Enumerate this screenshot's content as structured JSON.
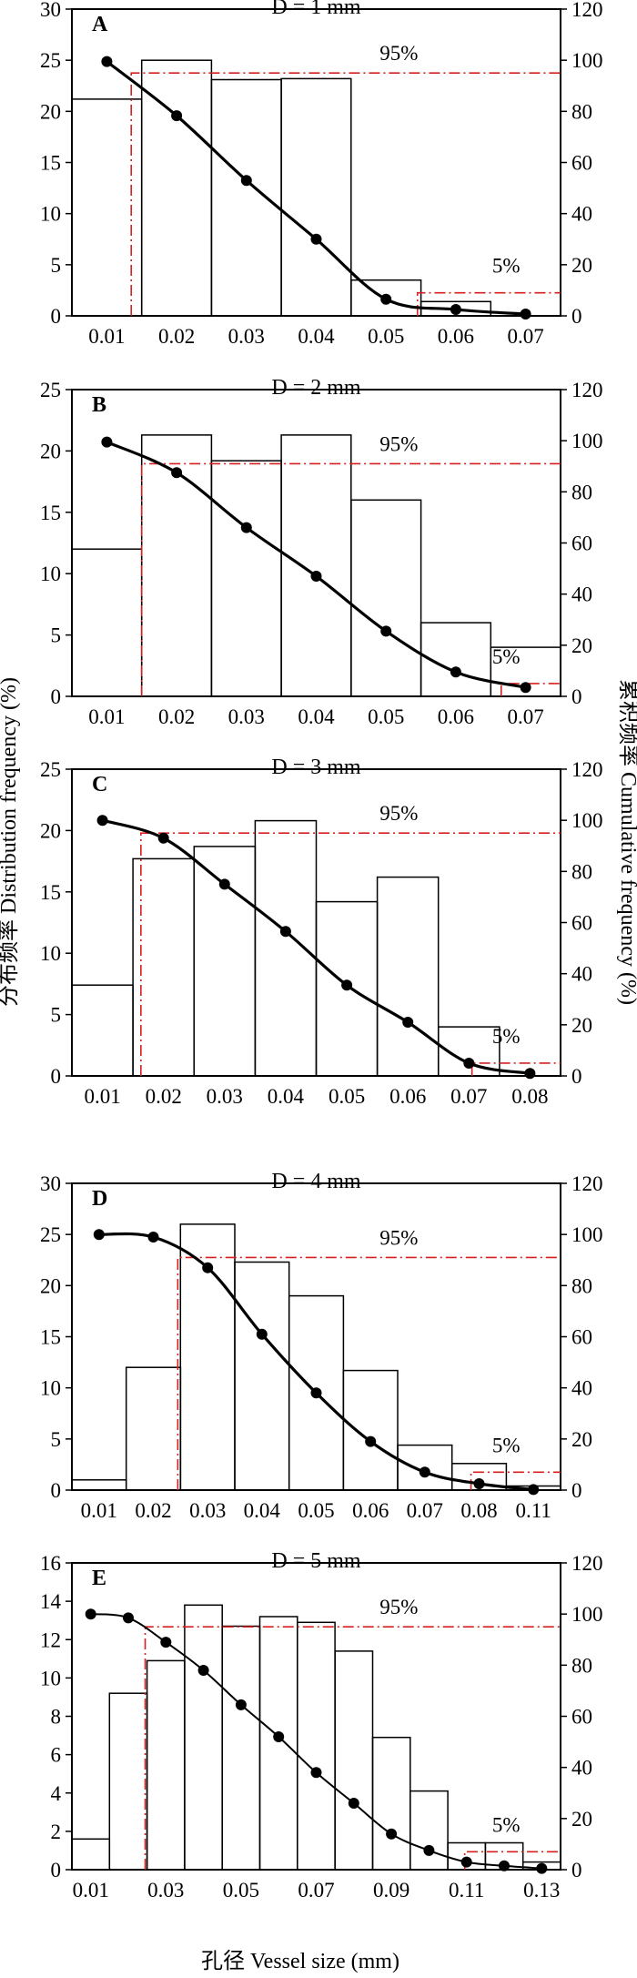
{
  "axes": {
    "left_label": "分布频率 Distribution frequency (%)",
    "right_label": "累积频率 Cumulative frequency (%)",
    "x_label": "孔径 Vessel size (mm)"
  },
  "colors": {
    "bars": "#000000",
    "curve": "#000000",
    "guide": "#d62020"
  },
  "chart_data": [
    {
      "type": "bar",
      "panel": "A",
      "title": "D = 1 mm",
      "categories": [
        "0.01",
        "0.02",
        "0.03",
        "0.04",
        "0.05",
        "0.06",
        "0.07"
      ],
      "series": [
        {
          "name": "",
          "axis": "left",
          "type": "bar",
          "values": [
            21.2,
            25.0,
            23.1,
            23.2,
            3.5,
            1.4,
            0
          ]
        },
        {
          "name": "",
          "axis": "right",
          "type": "line",
          "values": [
            99.5,
            78.3,
            53.0,
            30.0,
            6.5,
            2.5,
            0.7
          ]
        }
      ],
      "ylim_left": [
        0,
        30
      ],
      "yticks_left": [
        0,
        5,
        10,
        15,
        20,
        25,
        30
      ],
      "ylim_right": [
        0,
        120
      ],
      "yticks_right": [
        0,
        20,
        40,
        60,
        80,
        100,
        120
      ],
      "guides": {
        "p95_value": 95,
        "p95_label": "95%",
        "p95_x": 0.0135,
        "p5_value": 9,
        "p5_label": "5%",
        "p5_x": 0.0545
      }
    },
    {
      "type": "bar",
      "panel": "B",
      "title": "D = 2 mm",
      "categories": [
        "0.01",
        "0.02",
        "0.03",
        "0.04",
        "0.05",
        "0.06",
        "0.07"
      ],
      "series": [
        {
          "name": "",
          "axis": "left",
          "type": "bar",
          "values": [
            12.0,
            21.3,
            19.2,
            21.3,
            16.0,
            6.0,
            4.0
          ]
        },
        {
          "name": "",
          "axis": "right",
          "type": "line",
          "values": [
            99.5,
            87.5,
            66.0,
            47.0,
            25.5,
            9.5,
            3.5
          ]
        }
      ],
      "ylim_left": [
        0,
        25
      ],
      "yticks_left": [
        0,
        5,
        10,
        15,
        20,
        25
      ],
      "ylim_right": [
        0,
        120
      ],
      "yticks_right": [
        0,
        20,
        40,
        60,
        80,
        100,
        120
      ],
      "guides": {
        "p95_value": 91,
        "p95_label": "95%",
        "p95_x": 0.015,
        "p5_value": 5,
        "p5_label": "5%",
        "p5_x": 0.0665
      }
    },
    {
      "type": "bar",
      "panel": "C",
      "title": "D = 3 mm",
      "categories": [
        "0.01",
        "0.02",
        "0.03",
        "0.04",
        "0.05",
        "0.06",
        "0.07",
        "0.08"
      ],
      "series": [
        {
          "name": "",
          "axis": "left",
          "type": "bar",
          "values": [
            7.4,
            17.7,
            18.7,
            20.8,
            14.2,
            16.2,
            4.0,
            0
          ]
        },
        {
          "name": "",
          "axis": "right",
          "type": "line",
          "values": [
            100.0,
            93.0,
            75.0,
            56.5,
            35.5,
            21.0,
            5.0,
            1.0
          ]
        }
      ],
      "ylim_left": [
        0,
        25
      ],
      "yticks_left": [
        0,
        5,
        10,
        15,
        20,
        25
      ],
      "ylim_right": [
        0,
        120
      ],
      "yticks_right": [
        0,
        20,
        40,
        60,
        80,
        100,
        120
      ],
      "guides": {
        "p95_value": 95,
        "p95_label": "95%",
        "p95_x": 0.0163,
        "p5_value": 5,
        "p5_label": "5%",
        "p5_x": 0.0705
      }
    },
    {
      "type": "bar",
      "panel": "D",
      "title": "D = 4 mm",
      "categories": [
        "0.01",
        "0.02",
        "0.03",
        "0.04",
        "0.05",
        "0.06",
        "0.07",
        "0.08",
        "0.11"
      ],
      "series": [
        {
          "name": "",
          "axis": "left",
          "type": "bar",
          "values": [
            1.0,
            12.0,
            26.0,
            22.3,
            19.0,
            11.7,
            4.4,
            2.6,
            0.4
          ]
        },
        {
          "name": "",
          "axis": "right",
          "type": "line",
          "values": [
            100.0,
            99.0,
            87.0,
            61.0,
            38.0,
            19.0,
            7.0,
            2.5,
            0.2
          ]
        }
      ],
      "ylim_left": [
        0,
        30
      ],
      "yticks_left": [
        0,
        5,
        10,
        15,
        20,
        25,
        30
      ],
      "ylim_right": [
        0,
        120
      ],
      "yticks_right": [
        0,
        20,
        40,
        60,
        80,
        100,
        120
      ],
      "guides": {
        "p95_value": 91,
        "p95_label": "95%",
        "p95_x": 0.0245,
        "p5_value": 7,
        "p5_label": "5%",
        "p5_x": 0.0785
      }
    },
    {
      "type": "bar",
      "panel": "E",
      "title": "D = 5 mm",
      "categories": [
        "0.01",
        "0.02",
        "0.03",
        "0.04",
        "0.05",
        "0.06",
        "0.07",
        "0.08",
        "0.09",
        "0.10",
        "0.11",
        "0.12",
        "0.13"
      ],
      "xticks_shown": [
        "0.01",
        "0.03",
        "0.05",
        "0.07",
        "0.09",
        "0.11",
        "0.13"
      ],
      "series": [
        {
          "name": "",
          "axis": "left",
          "type": "bar",
          "values": [
            1.6,
            9.2,
            10.9,
            13.8,
            12.7,
            13.2,
            12.9,
            11.4,
            6.9,
            4.1,
            1.4,
            1.4,
            0.4
          ]
        },
        {
          "name": "",
          "axis": "right",
          "type": "line",
          "values": [
            100.0,
            98.5,
            89.0,
            78.0,
            64.5,
            52.0,
            38.0,
            26.0,
            14.0,
            7.5,
            3.0,
            1.5,
            0.5
          ]
        }
      ],
      "ylim_left": [
        0,
        16
      ],
      "yticks_left": [
        0,
        2,
        4,
        6,
        8,
        10,
        12,
        14,
        16
      ],
      "ylim_right": [
        0,
        120
      ],
      "yticks_right": [
        0,
        20,
        40,
        60,
        80,
        100,
        120
      ],
      "guides": {
        "p95_value": 95,
        "p95_label": "95%",
        "p95_x": 0.0245,
        "p5_value": 7,
        "p5_label": "5%",
        "p5_x": 0.1095
      }
    }
  ]
}
